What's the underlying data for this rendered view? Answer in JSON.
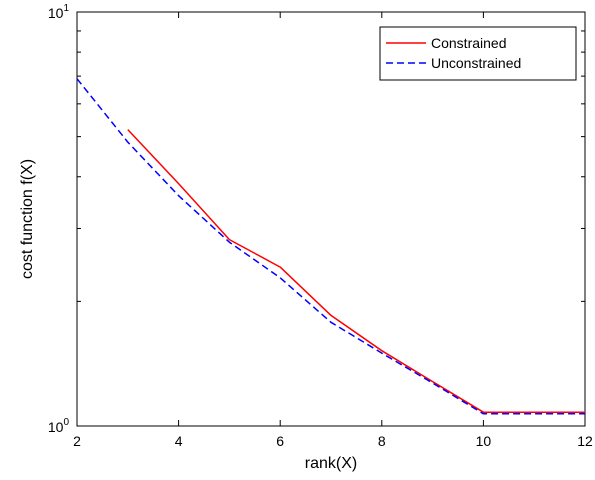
{
  "chart_data": {
    "type": "line",
    "title": "",
    "xlabel": "rank(X)",
    "ylabel": "cost function f(X)",
    "xlim": [
      2,
      12
    ],
    "ylim": [
      1,
      10
    ],
    "yscale": "log",
    "grid": false,
    "legend_position": "top-right",
    "x_ticks": [
      2,
      4,
      6,
      8,
      10,
      12
    ],
    "y_ticks": [
      {
        "base": "10",
        "exp": "0",
        "value": 1
      },
      {
        "base": "10",
        "exp": "1",
        "value": 10
      }
    ],
    "series": [
      {
        "name": "Constrained",
        "color": "#ff0000",
        "dash": "solid",
        "x": [
          3,
          4,
          5,
          6,
          7,
          8,
          9,
          10,
          11,
          12
        ],
        "y": [
          5.2,
          3.85,
          2.82,
          2.42,
          1.85,
          1.52,
          1.28,
          1.08,
          1.08,
          1.08
        ]
      },
      {
        "name": "Unconstrained",
        "color": "#0000ff",
        "dash": "dashed",
        "x": [
          2,
          3,
          4,
          5,
          6,
          7,
          8,
          9,
          10,
          11,
          12
        ],
        "y": [
          6.9,
          4.85,
          3.6,
          2.78,
          2.28,
          1.78,
          1.5,
          1.27,
          1.07,
          1.07,
          1.07
        ]
      }
    ]
  }
}
